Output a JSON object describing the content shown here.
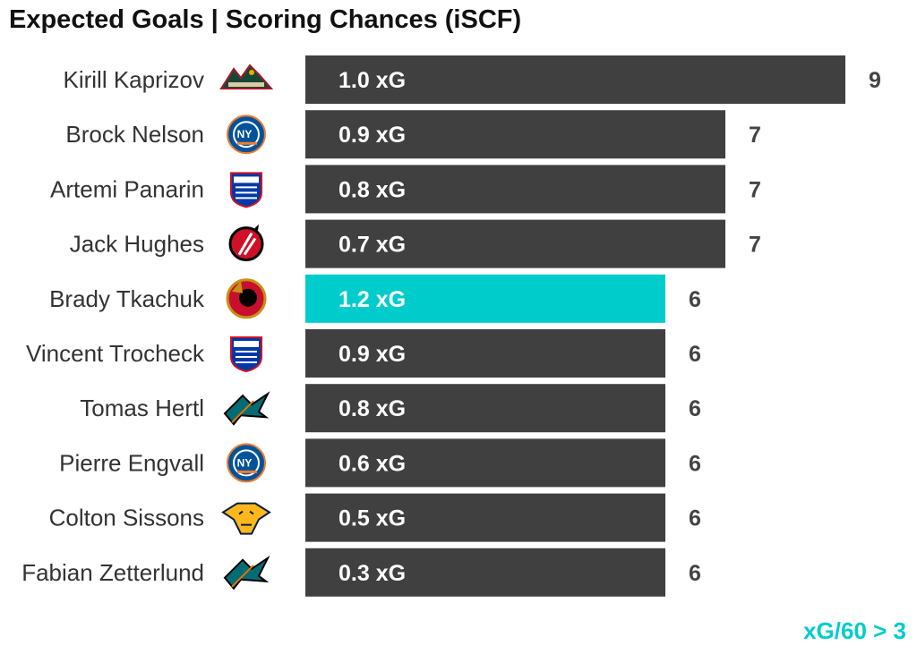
{
  "title": "Expected Goals | Scoring Chances (iSCF)",
  "footnote": "xG/60 > 3",
  "colors": {
    "bar": "#404040",
    "highlight": "#00cccc",
    "footnote": "#00cccc"
  },
  "chart_data": {
    "type": "bar",
    "orientation": "horizontal",
    "title": "Expected Goals | Scoring Chances (iSCF)",
    "xlim": [
      0,
      9
    ],
    "grid": false,
    "legend": "none",
    "rows": [
      {
        "player": "Kirill Kaprizov",
        "team_logo": "wild-logo-icon",
        "iscf": 9,
        "xg_label": "1.0 xG",
        "highlight": false
      },
      {
        "player": "Brock Nelson",
        "team_logo": "islanders-logo-icon",
        "iscf": 7,
        "xg_label": "0.9 xG",
        "highlight": false
      },
      {
        "player": "Artemi Panarin",
        "team_logo": "rangers-logo-icon",
        "iscf": 7,
        "xg_label": "0.8 xG",
        "highlight": false
      },
      {
        "player": "Jack Hughes",
        "team_logo": "devils-logo-icon",
        "iscf": 7,
        "xg_label": "0.7 xG",
        "highlight": false
      },
      {
        "player": "Brady Tkachuk",
        "team_logo": "senators-logo-icon",
        "iscf": 6,
        "xg_label": "1.2 xG",
        "highlight": true
      },
      {
        "player": "Vincent Trocheck",
        "team_logo": "rangers-logo-icon",
        "iscf": 6,
        "xg_label": "0.9 xG",
        "highlight": false
      },
      {
        "player": "Tomas Hertl",
        "team_logo": "sharks-logo-icon",
        "iscf": 6,
        "xg_label": "0.8 xG",
        "highlight": false
      },
      {
        "player": "Pierre Engvall",
        "team_logo": "islanders-logo-icon",
        "iscf": 6,
        "xg_label": "0.6 xG",
        "highlight": false
      },
      {
        "player": "Colton Sissons",
        "team_logo": "predators-logo-icon",
        "iscf": 6,
        "xg_label": "0.5 xG",
        "highlight": false
      },
      {
        "player": "Fabian Zetterlund",
        "team_logo": "sharks-logo-icon",
        "iscf": 6,
        "xg_label": "0.3 xG",
        "highlight": false
      }
    ]
  }
}
